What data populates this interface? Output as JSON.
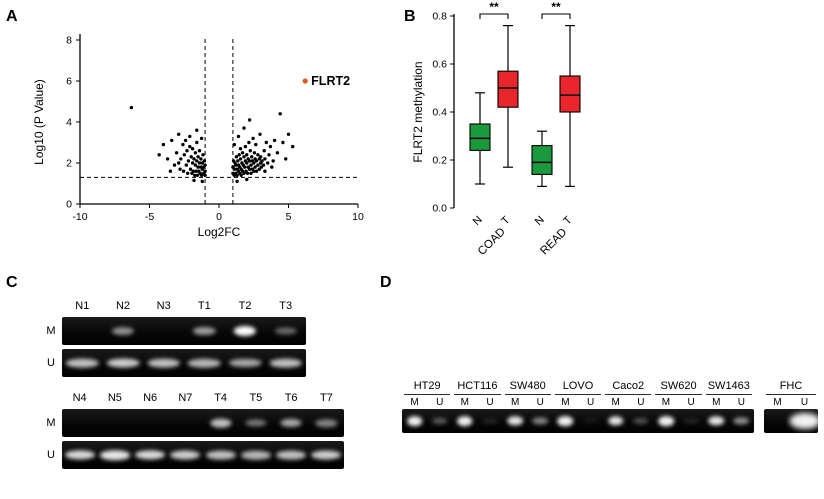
{
  "panels": {
    "a_label": "A",
    "b_label": "B",
    "c_label": "C",
    "d_label": "D"
  },
  "chart_data": [
    {
      "id": "volcano",
      "type": "scatter",
      "title": "",
      "xlabel": "Log2FC",
      "ylabel": "Log10 (P Value)",
      "xlim": [
        -10,
        10
      ],
      "ylim": [
        0,
        8
      ],
      "xticks": [
        -10,
        -5,
        0,
        5,
        10
      ],
      "yticks": [
        0,
        2,
        4,
        6,
        8
      ],
      "threshold_lines": {
        "vertical_x": [
          -1,
          1
        ],
        "horizontal_y": 1.3
      },
      "highlight_point": {
        "label": "FLRT2",
        "x": 6.2,
        "y": 6.0,
        "color": "#e2571c"
      },
      "point_color": "#000000",
      "points": [
        [
          -6.3,
          4.7
        ],
        [
          -4.3,
          2.4
        ],
        [
          -4.0,
          2.9
        ],
        [
          -3.7,
          2.2
        ],
        [
          -3.5,
          1.6
        ],
        [
          -3.4,
          3.1
        ],
        [
          -3.2,
          1.9
        ],
        [
          -3.05,
          2.5
        ],
        [
          -2.9,
          3.4
        ],
        [
          -2.9,
          2.0
        ],
        [
          -2.8,
          1.7
        ],
        [
          -2.75,
          2.2
        ],
        [
          -2.6,
          2.9
        ],
        [
          -2.55,
          1.6
        ],
        [
          -2.5,
          2.4
        ],
        [
          -2.4,
          3.1
        ],
        [
          -2.35,
          1.9
        ],
        [
          -2.3,
          2.6
        ],
        [
          -2.25,
          1.5
        ],
        [
          -2.2,
          2.1
        ],
        [
          -2.1,
          3.3
        ],
        [
          -2.1,
          2.8
        ],
        [
          -2.05,
          1.7
        ],
        [
          -2.0,
          2.3
        ],
        [
          -1.95,
          1.5
        ],
        [
          -1.9,
          2.7
        ],
        [
          -1.9,
          2.0
        ],
        [
          -1.85,
          1.6
        ],
        [
          -1.8,
          2.2
        ],
        [
          -1.8,
          1.15
        ],
        [
          -1.75,
          1.4
        ],
        [
          -1.7,
          2.5
        ],
        [
          -1.7,
          1.9
        ],
        [
          -1.65,
          1.6
        ],
        [
          -1.6,
          3.6
        ],
        [
          -1.6,
          3.0
        ],
        [
          -1.6,
          2.1
        ],
        [
          -1.55,
          1.4
        ],
        [
          -1.5,
          2.3
        ],
        [
          -1.5,
          1.8
        ],
        [
          -1.45,
          1.6
        ],
        [
          -1.4,
          2.6
        ],
        [
          -1.4,
          2.0
        ],
        [
          -1.35,
          1.5
        ],
        [
          -1.3,
          2.2
        ],
        [
          -1.3,
          1.8
        ],
        [
          -1.25,
          3.2
        ],
        [
          -1.25,
          1.4
        ],
        [
          -1.2,
          2.0
        ],
        [
          -1.2,
          1.7
        ],
        [
          -1.2,
          1.1
        ],
        [
          -1.15,
          2.4
        ],
        [
          -1.1,
          1.8
        ],
        [
          -1.1,
          1.5
        ],
        [
          -1.05,
          2.1
        ],
        [
          -1.0,
          1.9
        ],
        [
          -1.0,
          1.6
        ],
        [
          -1.0,
          1.4
        ],
        [
          1.0,
          1.8
        ],
        [
          1.0,
          1.5
        ],
        [
          1.05,
          2.1
        ],
        [
          1.1,
          2.9
        ],
        [
          1.1,
          1.7
        ],
        [
          1.1,
          1.4
        ],
        [
          1.15,
          2.0
        ],
        [
          1.2,
          1.9
        ],
        [
          1.2,
          1.5
        ],
        [
          1.25,
          2.3
        ],
        [
          1.3,
          1.7
        ],
        [
          1.3,
          1.4
        ],
        [
          1.3,
          1.1
        ],
        [
          1.35,
          2.1
        ],
        [
          1.4,
          3.3
        ],
        [
          1.4,
          1.9
        ],
        [
          1.4,
          1.6
        ],
        [
          1.45,
          2.4
        ],
        [
          1.5,
          1.8
        ],
        [
          1.5,
          1.5
        ],
        [
          1.55,
          2.7
        ],
        [
          1.55,
          2.2
        ],
        [
          1.6,
          1.7
        ],
        [
          1.6,
          1.4
        ],
        [
          1.65,
          2.0
        ],
        [
          1.7,
          2.5
        ],
        [
          1.7,
          1.6
        ],
        [
          1.75,
          1.9
        ],
        [
          1.8,
          3.7
        ],
        [
          1.8,
          2.3
        ],
        [
          1.8,
          1.5
        ],
        [
          1.85,
          1.8
        ],
        [
          1.9,
          2.8
        ],
        [
          1.9,
          2.1
        ],
        [
          1.95,
          1.6
        ],
        [
          2.0,
          2.4
        ],
        [
          2.0,
          2.0
        ],
        [
          2.0,
          1.2
        ],
        [
          2.05,
          1.5
        ],
        [
          2.1,
          2.2
        ],
        [
          2.1,
          1.8
        ],
        [
          2.15,
          3.0
        ],
        [
          2.2,
          4.1
        ],
        [
          2.2,
          2.1
        ],
        [
          2.2,
          1.7
        ],
        [
          2.25,
          2.6
        ],
        [
          2.3,
          1.9
        ],
        [
          2.3,
          1.5
        ],
        [
          2.35,
          2.3
        ],
        [
          2.4,
          2.1
        ],
        [
          2.4,
          1.7
        ],
        [
          2.45,
          3.2
        ],
        [
          2.5,
          2.0
        ],
        [
          2.5,
          1.6
        ],
        [
          2.55,
          2.5
        ],
        [
          2.6,
          2.2
        ],
        [
          2.6,
          1.8
        ],
        [
          2.65,
          2.9
        ],
        [
          2.7,
          2.1
        ],
        [
          2.7,
          1.6
        ],
        [
          2.8,
          2.4
        ],
        [
          2.8,
          1.9
        ],
        [
          2.9,
          2.2
        ],
        [
          2.9,
          1.7
        ],
        [
          2.95,
          3.4
        ],
        [
          3.0,
          2.3
        ],
        [
          3.0,
          2.0
        ],
        [
          3.05,
          1.8
        ],
        [
          3.1,
          2.1
        ],
        [
          3.2,
          1.9
        ],
        [
          3.25,
          2.6
        ],
        [
          3.3,
          2.2
        ],
        [
          3.3,
          1.6
        ],
        [
          3.4,
          3.0
        ],
        [
          3.5,
          2.0
        ],
        [
          3.6,
          2.4
        ],
        [
          3.7,
          2.8
        ],
        [
          3.8,
          1.8
        ],
        [
          3.9,
          2.1
        ],
        [
          4.0,
          3.1
        ],
        [
          4.2,
          2.5
        ],
        [
          4.4,
          4.4
        ],
        [
          4.6,
          3.0
        ],
        [
          4.8,
          2.2
        ],
        [
          5.0,
          3.4
        ],
        [
          5.3,
          2.8
        ]
      ]
    },
    {
      "id": "methylation_boxplot",
      "type": "box",
      "ylabel": "FLRT2 methylation",
      "ylim": [
        0,
        0.8
      ],
      "yticks": [
        "0.0",
        "0.2",
        "0.4",
        "0.6",
        "0.8"
      ],
      "colors": {
        "normal": "#1a9a3c",
        "tumor": "#e8262b"
      },
      "groups": [
        {
          "cohort": "COAD",
          "significance": "**",
          "boxes": [
            {
              "label": "N",
              "type": "normal",
              "low": 0.1,
              "q1": 0.24,
              "median": 0.29,
              "q3": 0.35,
              "high": 0.48
            },
            {
              "label": "T",
              "type": "tumor",
              "low": 0.17,
              "q1": 0.42,
              "median": 0.5,
              "q3": 0.57,
              "high": 0.76
            }
          ]
        },
        {
          "cohort": "READ",
          "significance": "**",
          "boxes": [
            {
              "label": "N",
              "type": "normal",
              "low": 0.09,
              "q1": 0.14,
              "median": 0.19,
              "q3": 0.26,
              "high": 0.32
            },
            {
              "label": "T",
              "type": "tumor",
              "low": 0.09,
              "q1": 0.4,
              "median": 0.47,
              "q3": 0.55,
              "high": 0.76
            }
          ]
        }
      ]
    }
  ],
  "gels": {
    "c_top": {
      "lane_labels": [
        "N1",
        "N2",
        "N3",
        "T1",
        "T2",
        "T3"
      ],
      "rows": [
        {
          "label": "M",
          "spread": 0.55,
          "bands": [
            0,
            0.55,
            0,
            0.6,
            1.0,
            0.4
          ]
        },
        {
          "label": "U",
          "spread": 0.8,
          "bands": [
            0.75,
            0.8,
            0.75,
            0.7,
            0.65,
            0.75
          ]
        }
      ]
    },
    "c_bottom": {
      "lane_labels": [
        "N4",
        "N5",
        "N6",
        "N7",
        "T4",
        "T5",
        "T6",
        "T7"
      ],
      "rows": [
        {
          "label": "M",
          "spread": 0.6,
          "bands": [
            0,
            0,
            0,
            0,
            0.75,
            0.45,
            0.65,
            0.5
          ]
        },
        {
          "label": "U",
          "spread": 0.85,
          "bands": [
            0.85,
            0.9,
            0.85,
            0.8,
            0.75,
            0.7,
            0.75,
            0.8
          ]
        }
      ]
    },
    "d": {
      "lane_labels": [
        "M",
        "U"
      ],
      "cell_lines": [
        {
          "name": "HT29",
          "bands": [
            0.95,
            0.35
          ]
        },
        {
          "name": "HCT116",
          "bands": [
            0.95,
            0.12
          ]
        },
        {
          "name": "SW480",
          "bands": [
            0.9,
            0.5
          ]
        },
        {
          "name": "LOVO",
          "bands": [
            0.95,
            0.08
          ]
        },
        {
          "name": "Caco2",
          "bands": [
            0.9,
            0.3
          ]
        },
        {
          "name": "SW620",
          "bands": [
            0.95,
            0.12
          ]
        },
        {
          "name": "SW1463",
          "bands": [
            0.9,
            0.55
          ]
        }
      ],
      "separate_line": {
        "name": "FHC",
        "blob": true,
        "bands": [
          0,
          0.95
        ]
      }
    }
  }
}
